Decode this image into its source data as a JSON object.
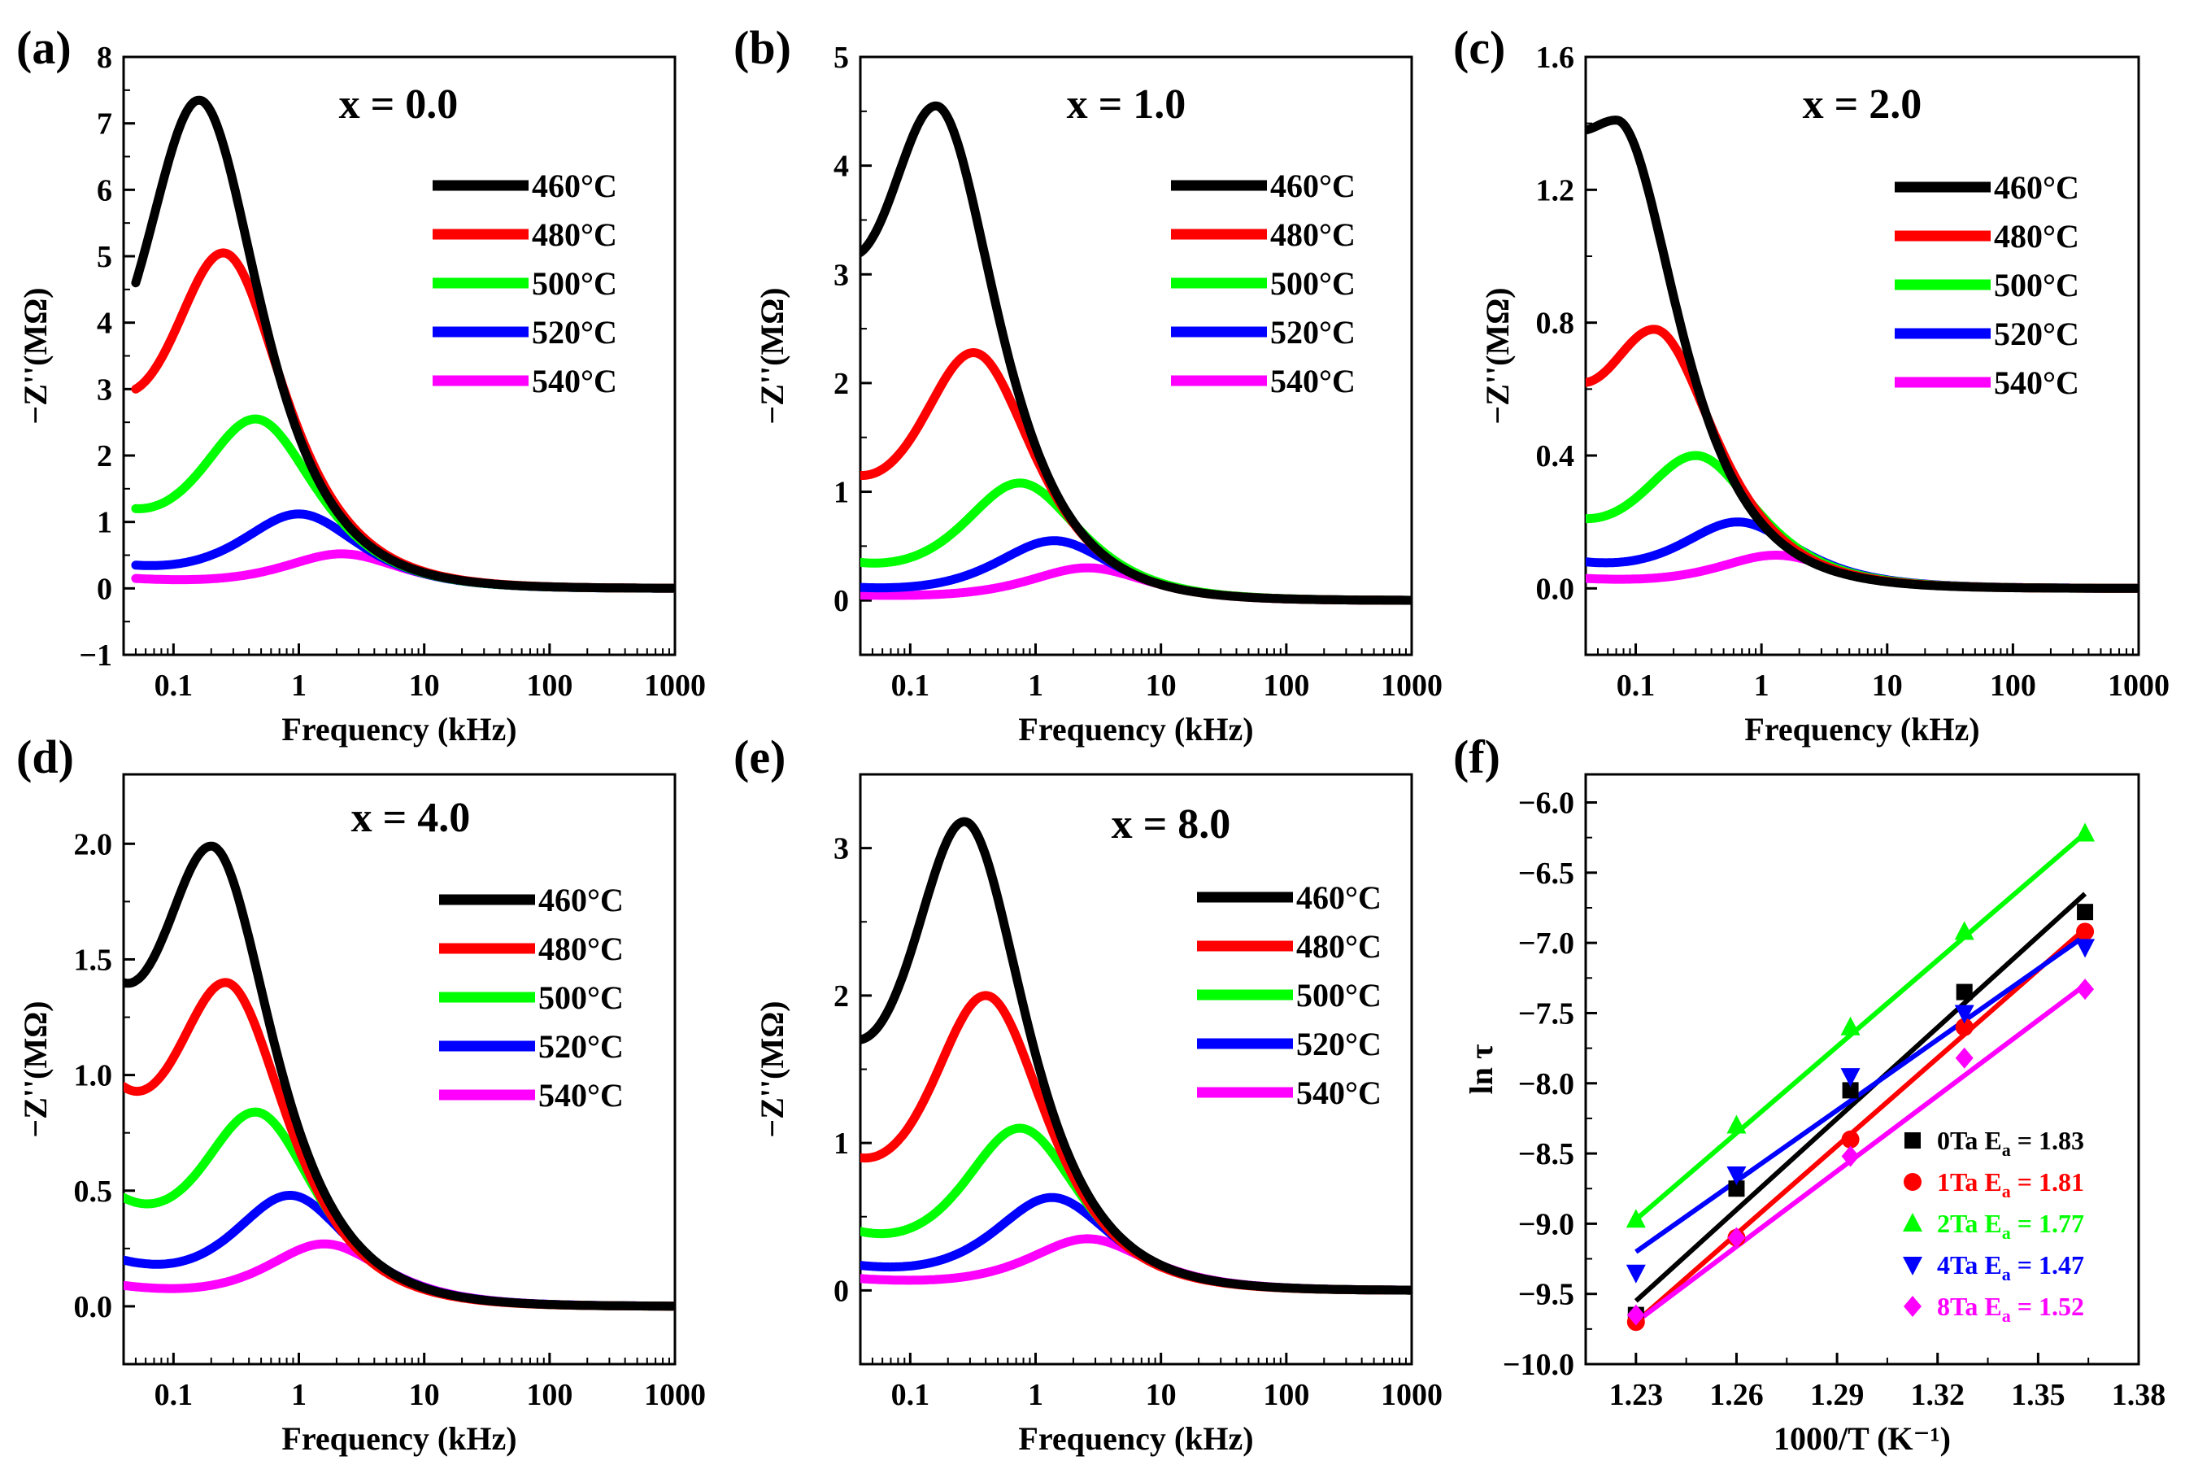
{
  "legend_labels": [
    "460°C",
    "480°C",
    "500°C",
    "520°C",
    "540°C"
  ],
  "colors": {
    "460": "#000000",
    "480": "#ff0000",
    "500": "#00ff00",
    "520": "#0000ff",
    "540": "#ff00ff",
    "0Ta": "#000000",
    "1Ta": "#ff0000",
    "2Ta": "#00ff00",
    "4Ta": "#0000ff",
    "8Ta": "#ff00ff"
  },
  "chart_data": [
    {
      "type": "line",
      "panel_label": "(a)",
      "title": "x = 0.0",
      "xlabel": "Frequency (kHz)",
      "ylabel": "−Z''(MΩ)",
      "xscale": "log",
      "xlim": [
        0.04,
        1000
      ],
      "ylim": [
        -1,
        8
      ],
      "xticks": [
        0.1,
        1,
        10,
        100,
        1000
      ],
      "xtick_labels": [
        "0.1",
        "1",
        "10",
        "100",
        "1000"
      ],
      "yticks": [
        -1,
        0,
        1,
        2,
        3,
        4,
        5,
        6,
        7,
        8
      ],
      "ytick_labels": [
        "−1",
        "0",
        "1",
        "2",
        "3",
        "4",
        "5",
        "6",
        "7",
        "8"
      ],
      "series": [
        {
          "name": "460°C",
          "peak_f": 0.16,
          "peak": 7.35,
          "start_f": 0.05,
          "start": 4.6
        },
        {
          "name": "480°C",
          "peak_f": 0.25,
          "peak": 5.05,
          "start_f": 0.05,
          "start": 3.0
        },
        {
          "name": "500°C",
          "peak_f": 0.45,
          "peak": 2.55,
          "start_f": 0.05,
          "start": 1.2
        },
        {
          "name": "520°C",
          "peak_f": 1.0,
          "peak": 1.12,
          "start_f": 0.05,
          "start": 0.35
        },
        {
          "name": "540°C",
          "peak_f": 2.2,
          "peak": 0.52,
          "start_f": 0.05,
          "start": 0.15
        }
      ]
    },
    {
      "type": "line",
      "panel_label": "(b)",
      "title": "x = 1.0",
      "xlabel": "Frequency (kHz)",
      "ylabel": "−Z''(MΩ)",
      "xscale": "log",
      "xlim": [
        0.04,
        1000
      ],
      "ylim": [
        -0.5,
        5
      ],
      "xticks": [
        0.1,
        1,
        10,
        100,
        1000
      ],
      "xtick_labels": [
        "0.1",
        "1",
        "10",
        "100",
        "1000"
      ],
      "yticks": [
        0,
        1,
        2,
        3,
        4,
        5
      ],
      "ytick_labels": [
        "0",
        "1",
        "2",
        "3",
        "4",
        "5"
      ],
      "series": [
        {
          "name": "460°C",
          "peak_f": 0.16,
          "peak": 4.55,
          "start_f": 0.04,
          "start": 3.2
        },
        {
          "name": "480°C",
          "peak_f": 0.32,
          "peak": 2.28,
          "start_f": 0.04,
          "start": 1.15
        },
        {
          "name": "500°C",
          "peak_f": 0.75,
          "peak": 1.08,
          "start_f": 0.04,
          "start": 0.35
        },
        {
          "name": "520°C",
          "peak_f": 1.4,
          "peak": 0.55,
          "start_f": 0.04,
          "start": 0.12
        },
        {
          "name": "540°C",
          "peak_f": 2.6,
          "peak": 0.3,
          "start_f": 0.04,
          "start": 0.05
        }
      ]
    },
    {
      "type": "line",
      "panel_label": "(c)",
      "title": "x = 2.0",
      "xlabel": "Frequency (kHz)",
      "ylabel": "−Z''(MΩ)",
      "xscale": "log",
      "xlim": [
        0.04,
        1000
      ],
      "ylim": [
        -0.2,
        1.6
      ],
      "xticks": [
        0.1,
        1,
        10,
        100,
        1000
      ],
      "xtick_labels": [
        "0.1",
        "1",
        "10",
        "100",
        "1000"
      ],
      "yticks": [
        0.0,
        0.4,
        0.8,
        1.2,
        1.6
      ],
      "ytick_labels": [
        "0.0",
        "0.4",
        "0.8",
        "1.2",
        "1.6"
      ],
      "series": [
        {
          "name": "460°C",
          "peak_f": 0.07,
          "peak": 1.41,
          "start_f": 0.04,
          "start": 1.38
        },
        {
          "name": "480°C",
          "peak_f": 0.14,
          "peak": 0.78,
          "start_f": 0.04,
          "start": 0.62
        },
        {
          "name": "500°C",
          "peak_f": 0.3,
          "peak": 0.4,
          "start_f": 0.04,
          "start": 0.21
        },
        {
          "name": "520°C",
          "peak_f": 0.65,
          "peak": 0.2,
          "start_f": 0.04,
          "start": 0.08
        },
        {
          "name": "540°C",
          "peak_f": 1.3,
          "peak": 0.1,
          "start_f": 0.04,
          "start": 0.03
        }
      ]
    },
    {
      "type": "line",
      "panel_label": "(d)",
      "title": "x = 4.0",
      "xlabel": "Frequency (kHz)",
      "ylabel": "−Z''(MΩ)",
      "xscale": "log",
      "xlim": [
        0.04,
        1000
      ],
      "ylim": [
        -0.25,
        2.3
      ],
      "xticks": [
        0.1,
        1,
        10,
        100,
        1000
      ],
      "xtick_labels": [
        "0.1",
        "1",
        "10",
        "100",
        "1000"
      ],
      "yticks": [
        0.0,
        0.5,
        1.0,
        1.5,
        2.0
      ],
      "ytick_labels": [
        "0.0",
        "0.5",
        "1.0",
        "1.5",
        "2.0"
      ],
      "series": [
        {
          "name": "460°C",
          "peak_f": 0.2,
          "peak": 1.99,
          "start_f": 0.04,
          "start": 1.4
        },
        {
          "name": "480°C",
          "peak_f": 0.26,
          "peak": 1.4,
          "start_f": 0.04,
          "start": 0.95
        },
        {
          "name": "500°C",
          "peak_f": 0.45,
          "peak": 0.84,
          "start_f": 0.04,
          "start": 0.47
        },
        {
          "name": "520°C",
          "peak_f": 0.85,
          "peak": 0.48,
          "start_f": 0.04,
          "start": 0.2
        },
        {
          "name": "540°C",
          "peak_f": 1.6,
          "peak": 0.27,
          "start_f": 0.04,
          "start": 0.09
        }
      ]
    },
    {
      "type": "line",
      "panel_label": "(e)",
      "title": "x = 8.0",
      "xlabel": "Frequency (kHz)",
      "ylabel": "−Z''(MΩ)",
      "xscale": "log",
      "xlim": [
        0.04,
        1000
      ],
      "ylim": [
        -0.5,
        3.5
      ],
      "xticks": [
        0.1,
        1,
        10,
        100,
        1000
      ],
      "xtick_labels": [
        "0.1",
        "1",
        "10",
        "100",
        "1000"
      ],
      "yticks": [
        0,
        1,
        2,
        3
      ],
      "ytick_labels": [
        "0",
        "1",
        "2",
        "3"
      ],
      "series": [
        {
          "name": "460°C",
          "peak_f": 0.27,
          "peak": 3.18,
          "start_f": 0.04,
          "start": 1.7
        },
        {
          "name": "480°C",
          "peak_f": 0.4,
          "peak": 2.0,
          "start_f": 0.04,
          "start": 0.9
        },
        {
          "name": "500°C",
          "peak_f": 0.75,
          "peak": 1.1,
          "start_f": 0.04,
          "start": 0.4
        },
        {
          "name": "520°C",
          "peak_f": 1.35,
          "peak": 0.63,
          "start_f": 0.04,
          "start": 0.17
        },
        {
          "name": "540°C",
          "peak_f": 2.6,
          "peak": 0.35,
          "start_f": 0.04,
          "start": 0.08
        }
      ]
    },
    {
      "type": "scatter",
      "panel_label": "(f)",
      "xlabel": "1000/T (K⁻¹)",
      "ylabel": "ln τ",
      "xlim": [
        1.215,
        1.38
      ],
      "ylim": [
        -10.0,
        -5.8
      ],
      "xticks": [
        1.23,
        1.26,
        1.29,
        1.32,
        1.35,
        1.38
      ],
      "xtick_labels": [
        "1.23",
        "1.26",
        "1.29",
        "1.32",
        "1.35",
        "1.38"
      ],
      "yticks": [
        -10.0,
        -9.5,
        -9.0,
        -8.5,
        -8.0,
        -7.5,
        -7.0,
        -6.5,
        -6.0
      ],
      "ytick_labels": [
        "−10.0",
        "−9.5",
        "−9.0",
        "−8.5",
        "−8.0",
        "−7.5",
        "−7.0",
        "−6.5",
        "−6.0"
      ],
      "x": [
        1.23,
        1.26,
        1.294,
        1.328,
        1.364
      ],
      "series": [
        {
          "name": "0Ta",
          "ea_label": "E",
          "ea_sub": "a",
          "ea_value": " = 1.83",
          "marker": "square",
          "y": [
            -9.65,
            -8.75,
            -8.05,
            -7.35,
            -6.78
          ],
          "fit": [
            [
              1.23,
              -9.55
            ],
            [
              1.364,
              -6.65
            ]
          ]
        },
        {
          "name": "1Ta",
          "ea_label": "E",
          "ea_sub": "a",
          "ea_value": " = 1.81",
          "marker": "circle",
          "y": [
            -9.7,
            -9.1,
            -8.4,
            -7.6,
            -6.92
          ],
          "fit": [
            [
              1.23,
              -9.7
            ],
            [
              1.364,
              -6.9
            ]
          ]
        },
        {
          "name": "2Ta",
          "ea_label": "E",
          "ea_sub": "a",
          "ea_value": " = 1.77",
          "marker": "triangle-up",
          "y": [
            -8.97,
            -8.3,
            -7.6,
            -6.92,
            -6.22
          ],
          "fit": [
            [
              1.23,
              -8.97
            ],
            [
              1.364,
              -6.22
            ]
          ]
        },
        {
          "name": "4Ta",
          "ea_label": "E",
          "ea_sub": "a",
          "ea_value": " = 1.47",
          "marker": "triangle-down",
          "y": [
            -9.35,
            -8.65,
            -7.95,
            -7.5,
            -7.03
          ],
          "fit": [
            [
              1.23,
              -9.2
            ],
            [
              1.364,
              -6.95
            ]
          ]
        },
        {
          "name": "8Ta",
          "ea_label": "E",
          "ea_sub": "a",
          "ea_value": " = 1.52",
          "marker": "diamond",
          "y": [
            -9.65,
            -9.1,
            -8.52,
            -7.82,
            -7.33
          ],
          "fit": [
            [
              1.23,
              -9.7
            ],
            [
              1.364,
              -7.3
            ]
          ]
        }
      ]
    }
  ]
}
